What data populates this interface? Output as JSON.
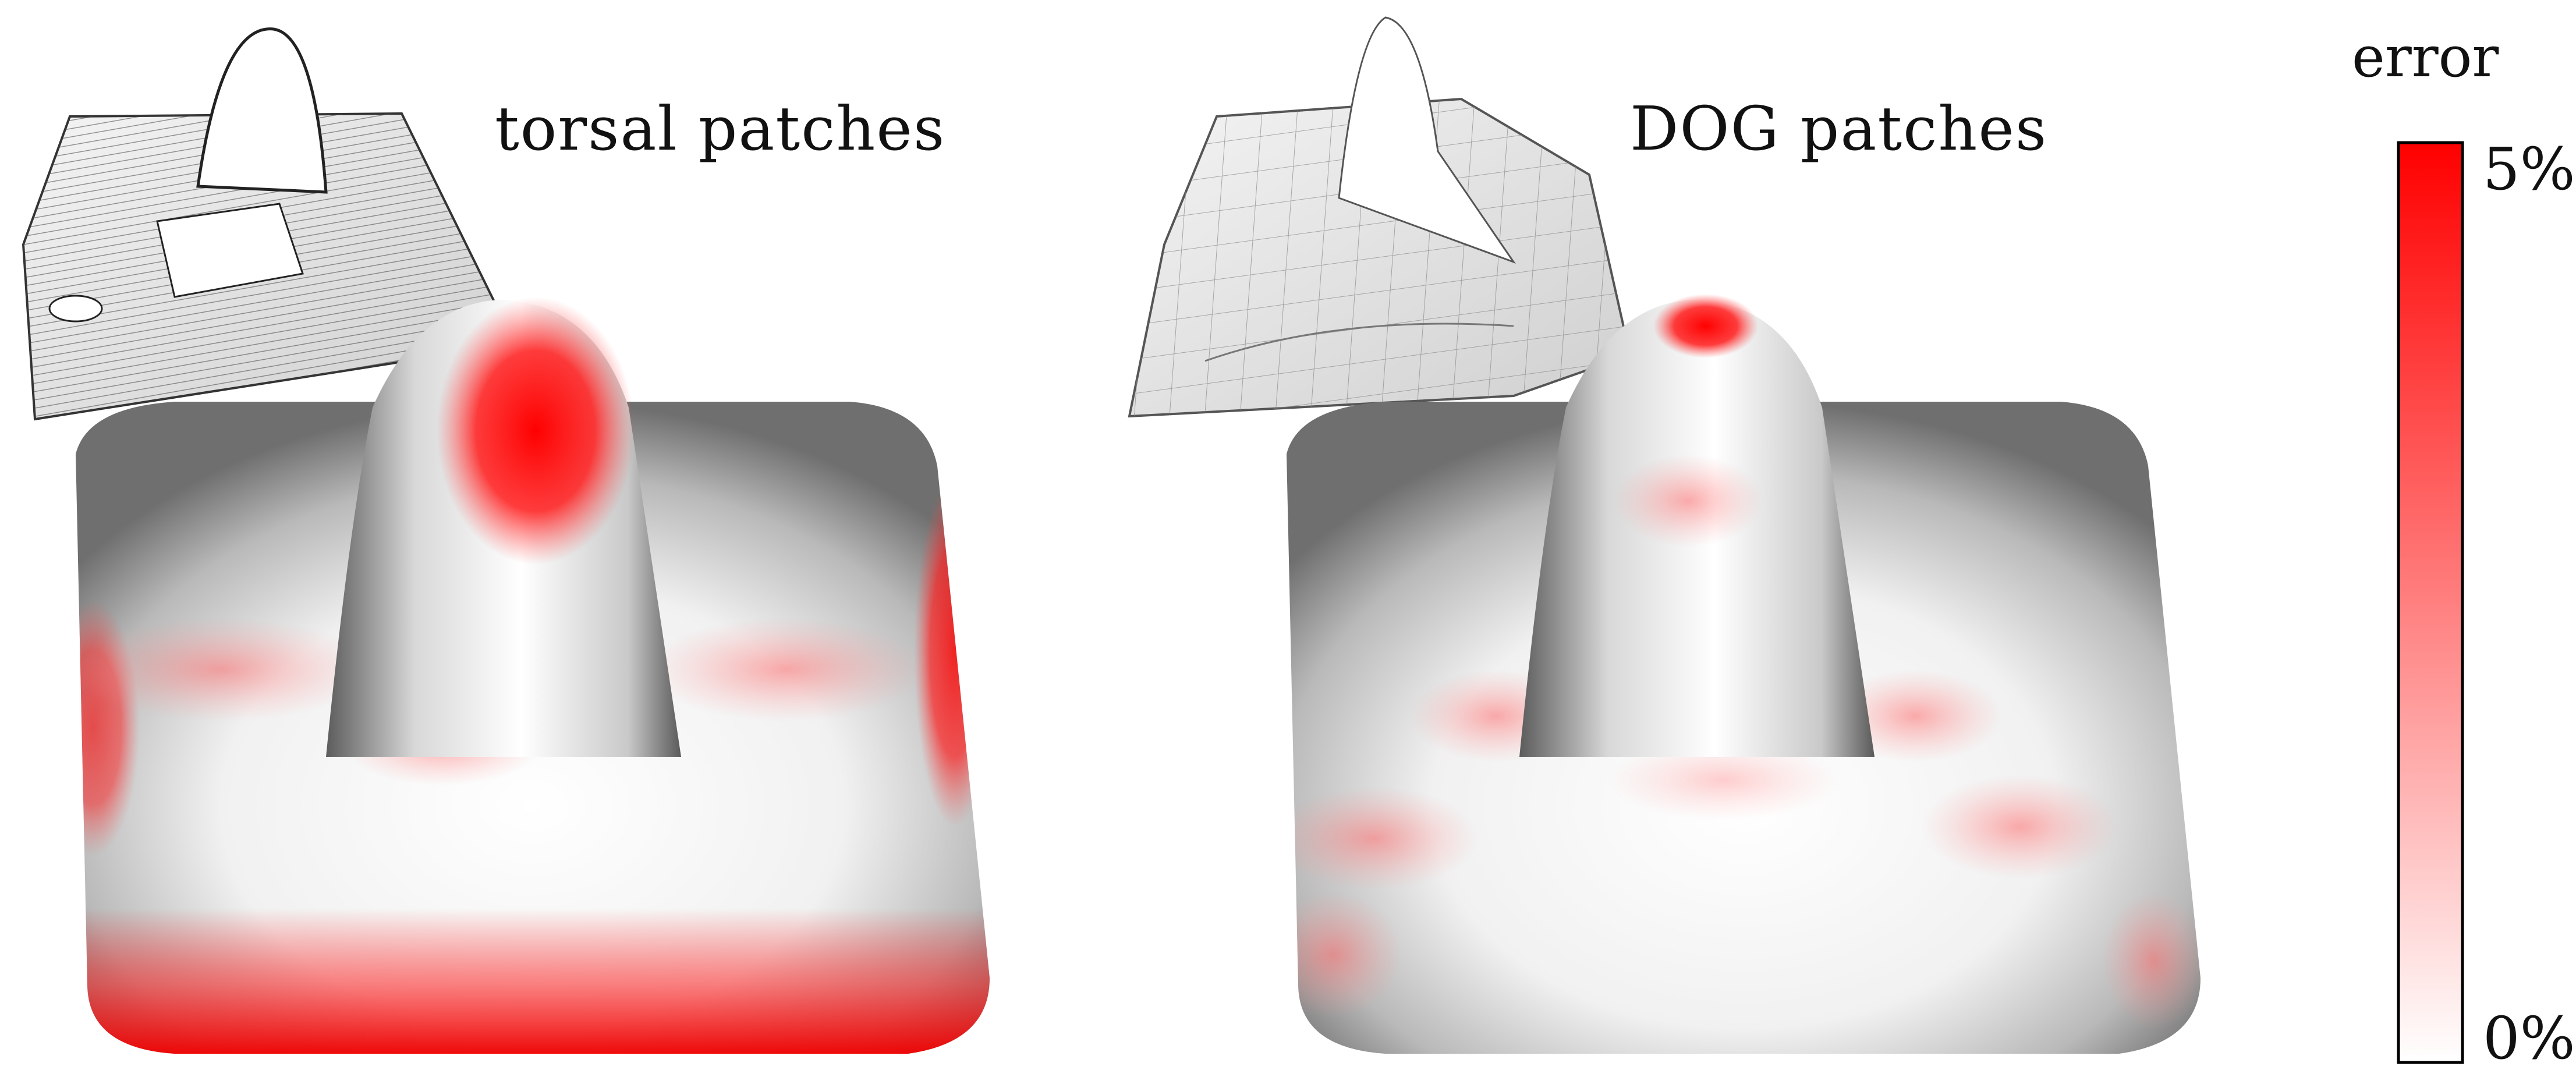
{
  "figure": {
    "panels": [
      {
        "label": "torsal patches",
        "icon": "ruled-torsal-mesh-icon"
      },
      {
        "label": "DOG patches",
        "icon": "grid-dog-mesh-icon"
      }
    ],
    "colorbar": {
      "title": "error",
      "max_label": "5%",
      "min_label": "0%",
      "high_color": "#ff0000",
      "low_color": "#ffffff"
    }
  }
}
